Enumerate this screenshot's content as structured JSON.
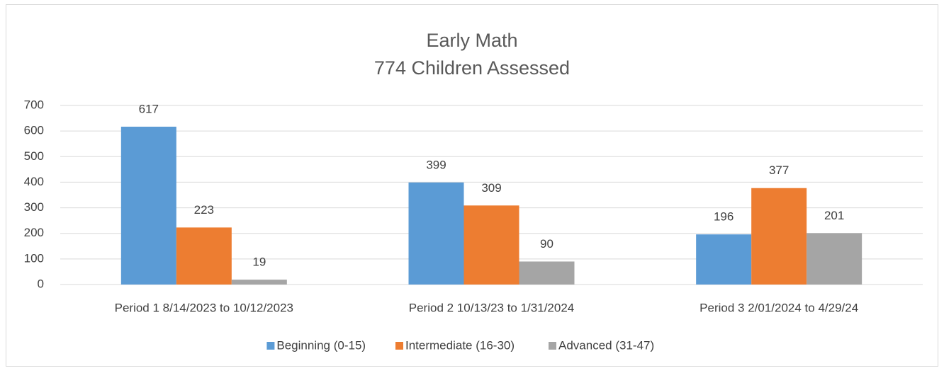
{
  "chart_data": {
    "type": "bar",
    "title": "Early Math",
    "subtitle": "774 Children Assessed",
    "categories": [
      "Period 1 8/14/2023 to 10/12/2023",
      "Period 2 10/13/23 to 1/31/2024",
      "Period 3 2/01/2024 to 4/29/24"
    ],
    "series": [
      {
        "name": "Beginning (0-15)",
        "color": "#5b9bd5",
        "values": [
          617,
          399,
          196
        ]
      },
      {
        "name": "Intermediate (16-30)",
        "color": "#ed7d31",
        "values": [
          223,
          309,
          377
        ]
      },
      {
        "name": "Advanced (31-47)",
        "color": "#a5a5a5",
        "values": [
          19,
          90,
          201
        ]
      }
    ],
    "ylim": [
      0,
      700
    ],
    "yticks": [
      0,
      100,
      200,
      300,
      400,
      500,
      600,
      700
    ],
    "grid": true,
    "legend": "bottom"
  }
}
